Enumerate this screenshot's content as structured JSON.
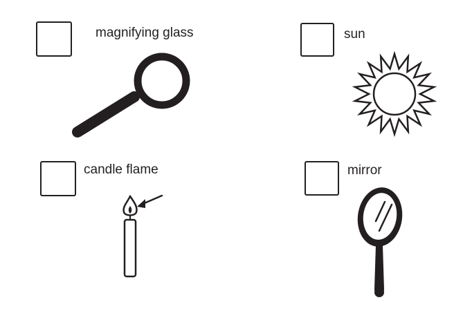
{
  "items": [
    {
      "label": "magnifying glass",
      "icon": "magnifying-glass-icon"
    },
    {
      "label": "sun",
      "icon": "sun-icon"
    },
    {
      "label": "candle flame",
      "icon": "candle-flame-icon"
    },
    {
      "label": "mirror",
      "icon": "mirror-icon"
    }
  ],
  "colors": {
    "ink": "#231f20",
    "background": "#ffffff"
  }
}
